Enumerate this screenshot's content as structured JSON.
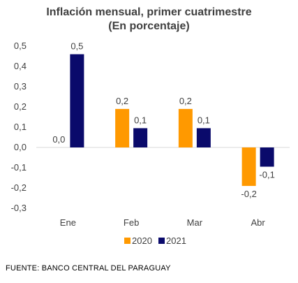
{
  "chart_data": {
    "type": "bar",
    "title": "Inflación  mensual, primer cuatrimestre",
    "subtitle": "(En porcentaje)",
    "categories": [
      "Ene",
      "Feb",
      "Mar",
      "Abr"
    ],
    "series": [
      {
        "name": "2020",
        "color": "#FF9900",
        "values": [
          0.0,
          0.19,
          0.19,
          -0.19
        ],
        "labels": [
          "0,0",
          "0,2",
          "0,2",
          "-0,2"
        ]
      },
      {
        "name": "2021",
        "color": "#0A0A6B",
        "values": [
          0.46,
          0.095,
          0.095,
          -0.095
        ],
        "labels": [
          "0,5",
          "0,1",
          "0,1",
          "-0,1"
        ]
      }
    ],
    "ylim": [
      -0.3,
      0.5
    ],
    "yticks": [
      "0,5",
      "0,4",
      "0,3",
      "0,2",
      "0,1",
      "0,0",
      "-0,1",
      "-0,2",
      "-0,3"
    ],
    "xlabel": "",
    "ylabel": "",
    "grid": false,
    "legend": "bottom"
  },
  "source": "FUENTE: BANCO CENTRAL DEL PARAGUAY"
}
